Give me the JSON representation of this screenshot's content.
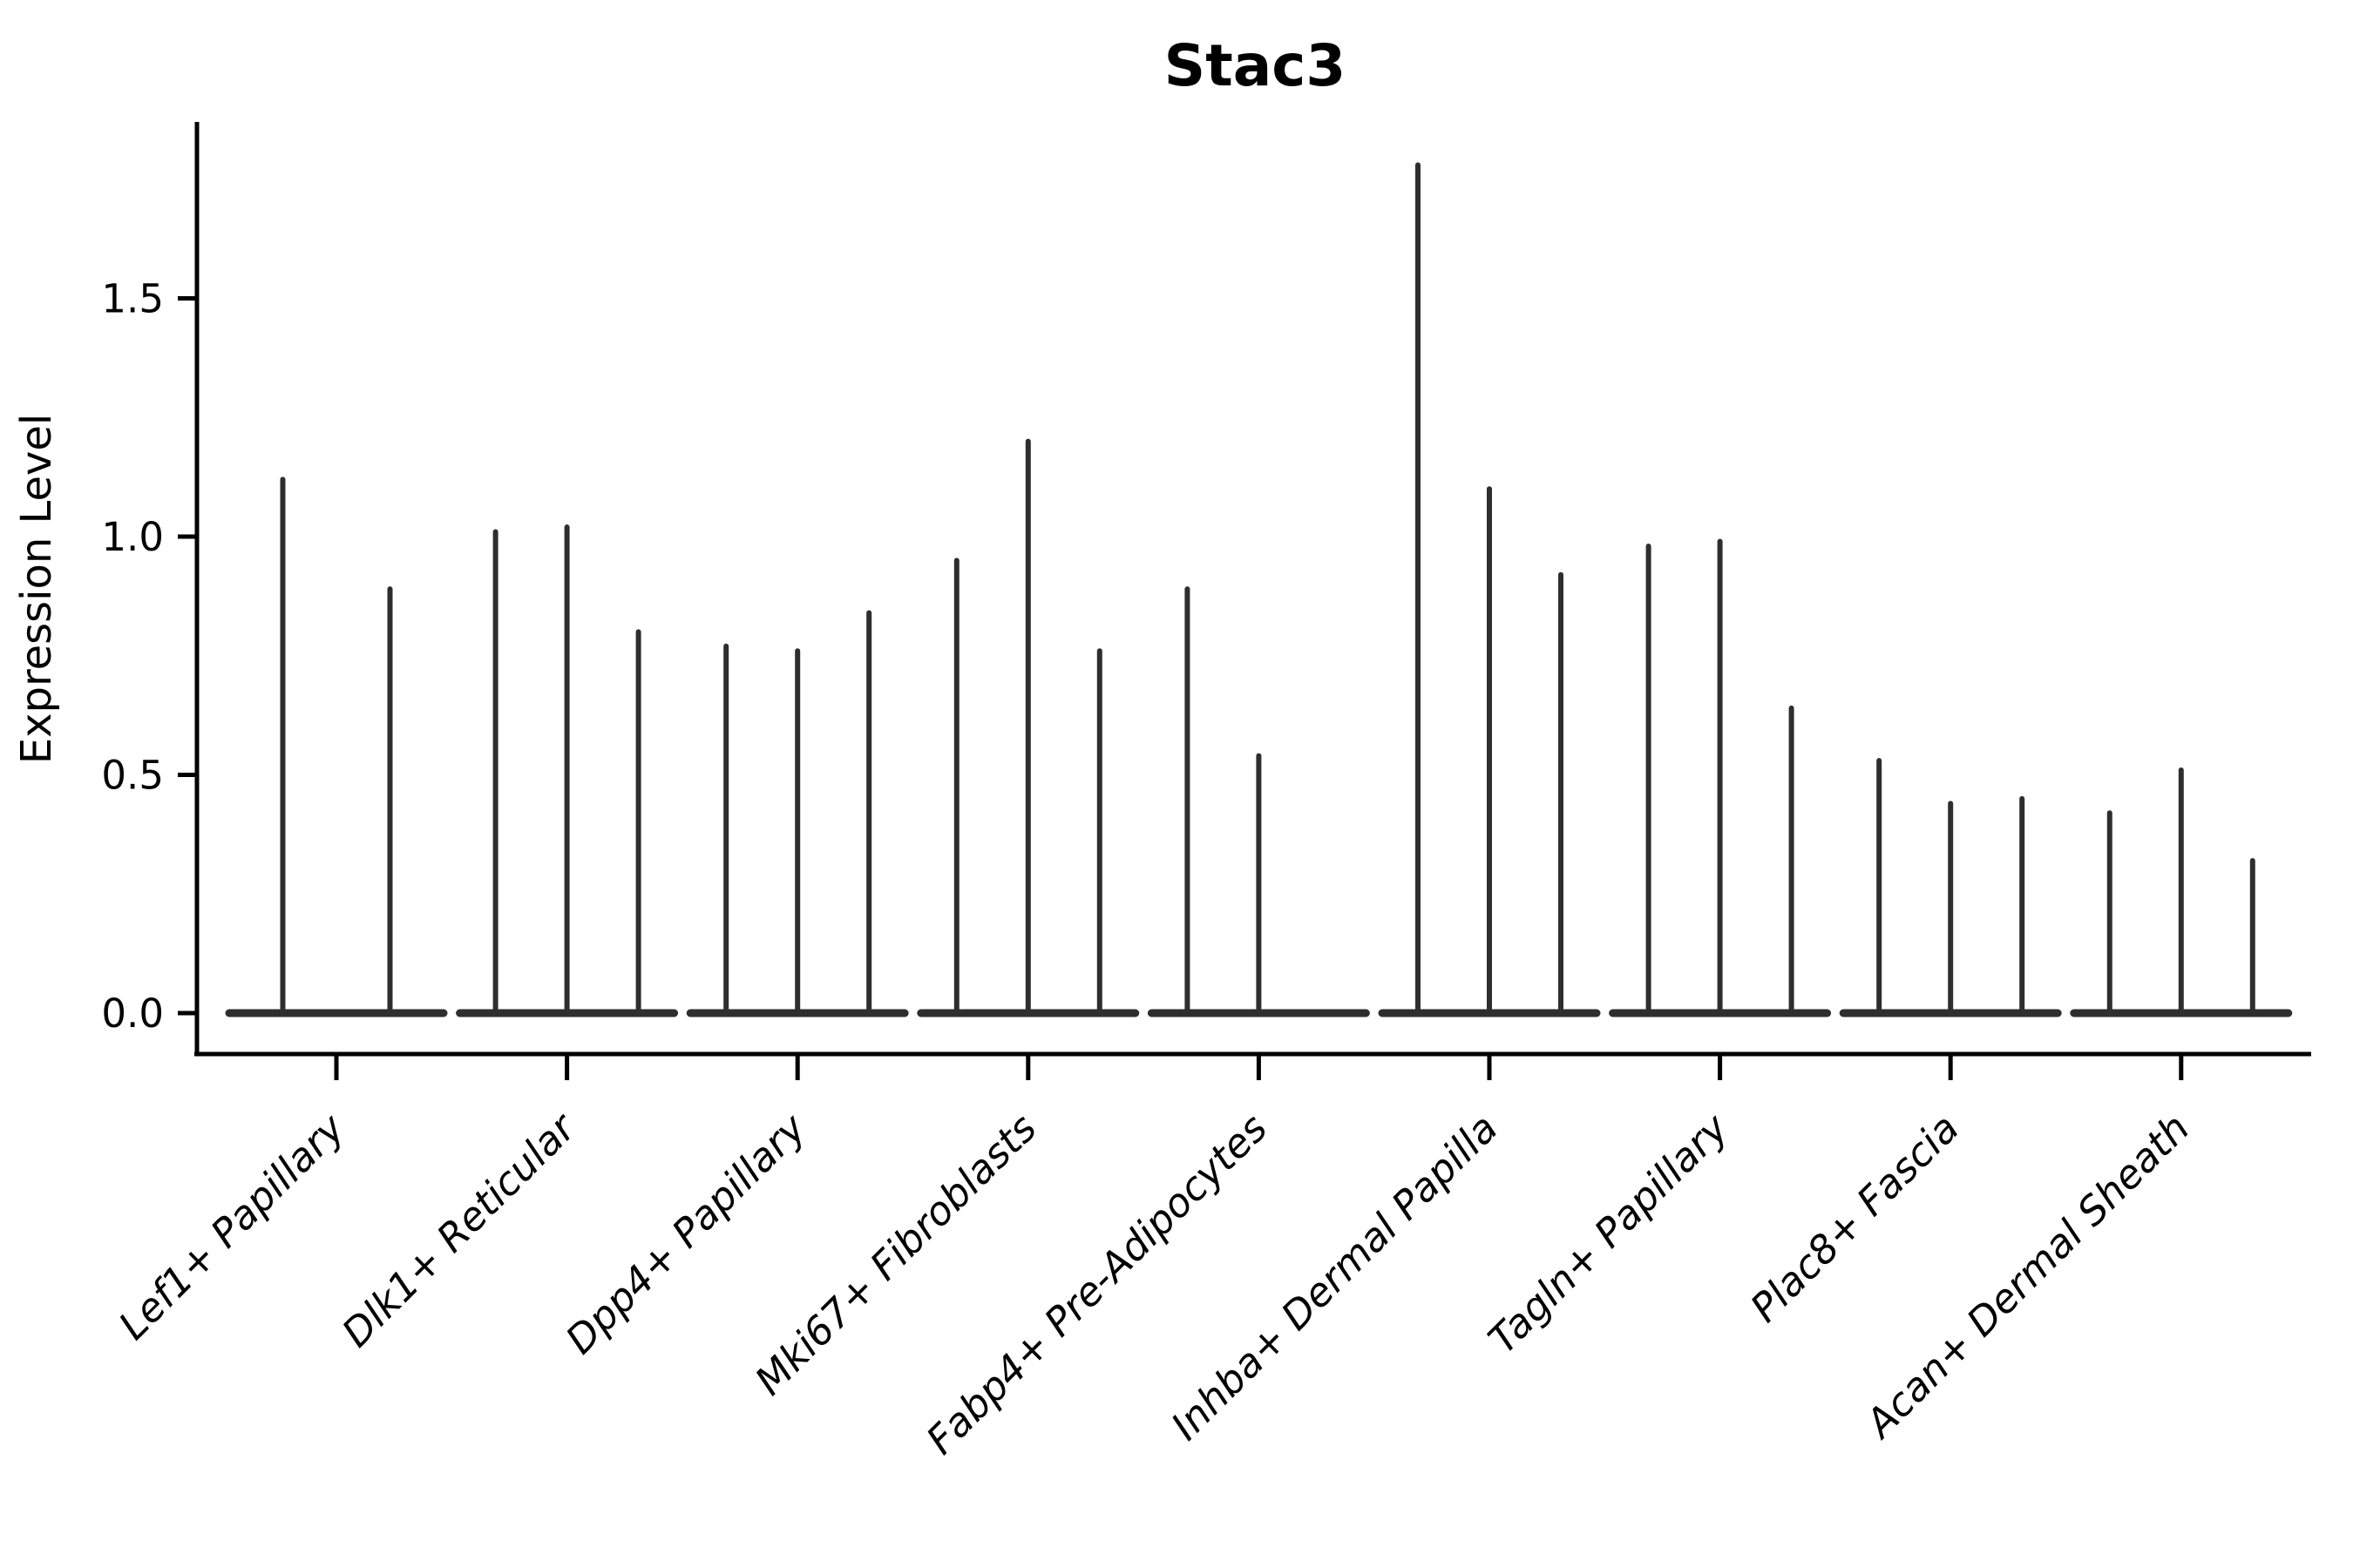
{
  "chart_data": {
    "type": "violin",
    "title": "Stac3",
    "ylabel": "Expression Level",
    "xlabel": "",
    "grid": false,
    "legend_position": "none",
    "axis_color": "#000000",
    "violin_color": "#2e2e2e",
    "ylim": [
      0,
      1.87
    ],
    "ytick_values": [
      0,
      0.5,
      1.0,
      1.5
    ],
    "ytick_labels": [
      "0.0",
      "0.5",
      "1.0",
      "1.5"
    ],
    "categories": [
      "Lef1+ Papillary",
      "Dlk1+ Reticular",
      "Dpp4+ Papillary",
      "Mki67+ Fibroblasts",
      "Fabp4+ Pre-Adipocytes",
      "Inhba+ Dermal Papilla",
      "Tagln+ Papillary",
      "Plac8+ Fascia",
      "Acan+ Dermal Sheath"
    ],
    "groups": [
      {
        "category": "Lef1+ Papillary",
        "violin_maxima": [
          1.12,
          0.89
        ]
      },
      {
        "category": "Dlk1+ Reticular",
        "violin_maxima": [
          1.01,
          1.02,
          0.8
        ]
      },
      {
        "category": "Dpp4+ Papillary",
        "violin_maxima": [
          0.77,
          0.76,
          0.84
        ]
      },
      {
        "category": "Mki67+ Fibroblasts",
        "violin_maxima": [
          0.95,
          1.2,
          0.76
        ]
      },
      {
        "category": "Fabp4+ Pre-Adipocytes",
        "violin_maxima": [
          0.89,
          0.54,
          0.0
        ]
      },
      {
        "category": "Inhba+ Dermal Papilla",
        "violin_maxima": [
          1.78,
          1.1,
          0.92
        ]
      },
      {
        "category": "Tagln+ Papillary",
        "violin_maxima": [
          0.98,
          0.99,
          0.64
        ]
      },
      {
        "category": "Plac8+ Fascia",
        "violin_maxima": [
          0.53,
          0.44,
          0.45
        ]
      },
      {
        "category": "Acan+ Dermal Sheath",
        "violin_maxima": [
          0.42,
          0.51,
          0.32
        ]
      }
    ]
  }
}
